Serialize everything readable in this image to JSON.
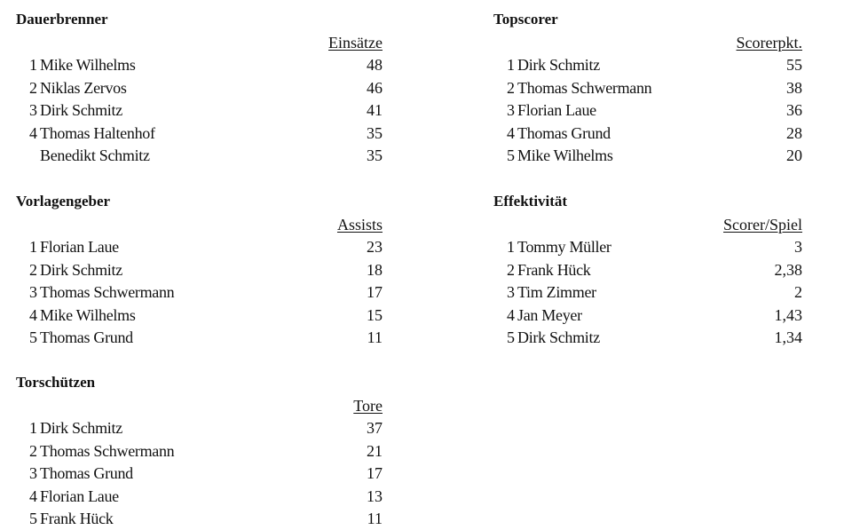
{
  "sections": [
    {
      "id": "dauerbrenner",
      "title": "Dauerbrenner",
      "column_header": "Einsätze",
      "rows": [
        {
          "rank": "1",
          "name": "Mike Wilhelms",
          "value": "48"
        },
        {
          "rank": "2",
          "name": "Niklas Zervos",
          "value": "46"
        },
        {
          "rank": "3",
          "name": "Dirk Schmitz",
          "value": "41"
        },
        {
          "rank": "4",
          "name": "Thomas Haltenhof",
          "value": "35"
        },
        {
          "rank": "",
          "name": "Benedikt Schmitz",
          "value": "35"
        }
      ]
    },
    {
      "id": "topscorer",
      "title": "Topscorer",
      "column_header": "Scorerpkt.",
      "rows": [
        {
          "rank": "1",
          "name": "Dirk Schmitz",
          "value": "55"
        },
        {
          "rank": "2",
          "name": "Thomas Schwermann",
          "value": "38"
        },
        {
          "rank": "3",
          "name": "Florian Laue",
          "value": "36"
        },
        {
          "rank": "4",
          "name": "Thomas Grund",
          "value": "28"
        },
        {
          "rank": "5",
          "name": "Mike Wilhelms",
          "value": "20"
        }
      ]
    },
    {
      "id": "vorlagengeber",
      "title": "Vorlagengeber",
      "column_header": "Assists",
      "rows": [
        {
          "rank": "1",
          "name": "Florian Laue",
          "value": "23"
        },
        {
          "rank": "2",
          "name": "Dirk Schmitz",
          "value": "18"
        },
        {
          "rank": "3",
          "name": "Thomas Schwermann",
          "value": "17"
        },
        {
          "rank": "4",
          "name": "Mike Wilhelms",
          "value": "15"
        },
        {
          "rank": "5",
          "name": "Thomas Grund",
          "value": "11"
        }
      ]
    },
    {
      "id": "effektivitaet",
      "title": "Effektivität",
      "column_header": "Scorer/Spiel",
      "rows": [
        {
          "rank": "1",
          "name": "Tommy Müller",
          "value": "3"
        },
        {
          "rank": "2",
          "name": "Frank Hück",
          "value": "2,38"
        },
        {
          "rank": "3",
          "name": "Tim Zimmer",
          "value": "2"
        },
        {
          "rank": "4",
          "name": "Jan Meyer",
          "value": "1,43"
        },
        {
          "rank": "5",
          "name": "Dirk Schmitz",
          "value": "1,34"
        }
      ]
    },
    {
      "id": "torschuetzen",
      "title": "Torschützen",
      "column_header": "Tore",
      "rows": [
        {
          "rank": "1",
          "name": "Dirk Schmitz",
          "value": "37"
        },
        {
          "rank": "2",
          "name": "Thomas Schwermann",
          "value": "21"
        },
        {
          "rank": "3",
          "name": "Thomas Grund",
          "value": "17"
        },
        {
          "rank": "4",
          "name": "Florian Laue",
          "value": "13"
        },
        {
          "rank": "5",
          "name": "Frank Hück",
          "value": "11"
        }
      ]
    }
  ]
}
